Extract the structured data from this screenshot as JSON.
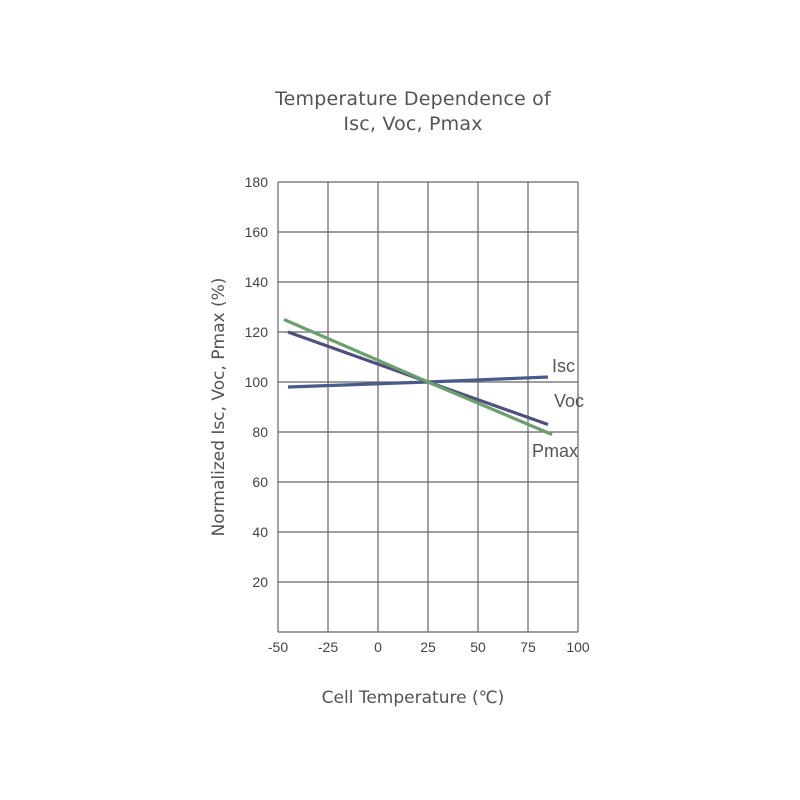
{
  "chart_data": {
    "type": "line",
    "title": "Temperature Dependence of",
    "subtitle": "Isc, Voc, Pmax",
    "xlabel": "Cell Temperature (℃)",
    "ylabel": "Normalized Isc, Voc, Pmax (%)",
    "xlim": [
      -50,
      100
    ],
    "ylim": [
      0,
      180
    ],
    "xticks": [
      -50,
      -25,
      0,
      25,
      50,
      75,
      100
    ],
    "xtick_labels": [
      "-50",
      "-25",
      "0",
      "25",
      "50",
      "75",
      "100"
    ],
    "yticks": [
      20,
      40,
      60,
      80,
      100,
      120,
      140,
      160,
      180
    ],
    "ytick_labels": [
      "20",
      "40",
      "60",
      "80",
      "100",
      "120",
      "140",
      "160",
      "180"
    ],
    "grid": true,
    "series": [
      {
        "name": "Isc",
        "color": "#4a5a8a",
        "x": [
          -45,
          25,
          85
        ],
        "y": [
          98,
          100,
          102
        ]
      },
      {
        "name": "Voc",
        "color": "#50507e",
        "x": [
          -45,
          25,
          85
        ],
        "y": [
          120,
          100,
          83
        ]
      },
      {
        "name": "Pmax",
        "color": "#6aa06c",
        "x": [
          -47,
          25,
          87
        ],
        "y": [
          125,
          100,
          79
        ]
      }
    ],
    "annotations": [
      {
        "text": "Isc",
        "x": 87,
        "y": 104
      },
      {
        "text": "Voc",
        "x": 88,
        "y": 90
      },
      {
        "text": "Pmax",
        "x": 77,
        "y": 70
      }
    ]
  }
}
